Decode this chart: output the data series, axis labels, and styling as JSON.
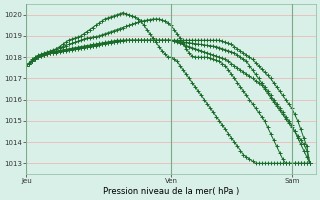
{
  "title": "",
  "xlabel": "Pression niveau de la mer( hPa )",
  "ylabel": "",
  "bg_color": "#d8f0e8",
  "grid_color": "#c8e8d8",
  "line_color": "#1a6b2a",
  "ylim": [
    1012.5,
    1020.5
  ],
  "yticks": [
    1013,
    1014,
    1015,
    1016,
    1017,
    1018,
    1019,
    1020
  ],
  "n_points": 97,
  "day_labels": [
    "Jeu",
    "Ven",
    "Sam"
  ],
  "day_positions": [
    0,
    48,
    88
  ],
  "series": [
    [
      1017.6,
      1017.7,
      1017.8,
      1017.9,
      1018.0,
      1018.1,
      1018.15,
      1018.2,
      1018.25,
      1018.3,
      1018.4,
      1018.5,
      1018.6,
      1018.7,
      1018.8,
      1018.85,
      1018.9,
      1018.95,
      1019.0,
      1019.1,
      1019.2,
      1019.3,
      1019.4,
      1019.5,
      1019.6,
      1019.7,
      1019.8,
      1019.85,
      1019.9,
      1019.95,
      1020.0,
      1020.05,
      1020.1,
      1020.05,
      1020.0,
      1019.95,
      1019.9,
      1019.8,
      1019.7,
      1019.5,
      1019.3,
      1019.1,
      1018.9,
      1018.7,
      1018.5,
      1018.3,
      1018.15,
      1018.0,
      1018.0,
      1017.9,
      1017.8,
      1017.6,
      1017.4,
      1017.2,
      1017.0,
      1016.8,
      1016.6,
      1016.4,
      1016.2,
      1016.0,
      1015.8,
      1015.6,
      1015.4,
      1015.2,
      1015.0,
      1014.8,
      1014.6,
      1014.4,
      1014.2,
      1014.0,
      1013.8,
      1013.6,
      1013.4,
      1013.3,
      1013.2,
      1013.1,
      1013.0,
      1013.0,
      1013.0,
      1013.0,
      1013.0,
      1013.0,
      1013.0,
      1013.0,
      1013.0,
      1013.0,
      1013.0,
      1013.0,
      1013.0,
      1013.0,
      1013.0,
      1013.0,
      1013.0,
      1013.0,
      1013.0
    ],
    [
      1017.6,
      1017.75,
      1017.9,
      1018.0,
      1018.1,
      1018.15,
      1018.2,
      1018.25,
      1018.3,
      1018.35,
      1018.4,
      1018.45,
      1018.5,
      1018.55,
      1018.6,
      1018.65,
      1018.7,
      1018.75,
      1018.8,
      1018.85,
      1018.9,
      1018.92,
      1018.95,
      1018.97,
      1019.0,
      1019.05,
      1019.1,
      1019.15,
      1019.2,
      1019.25,
      1019.3,
      1019.35,
      1019.4,
      1019.45,
      1019.5,
      1019.55,
      1019.6,
      1019.65,
      1019.7,
      1019.72,
      1019.75,
      1019.77,
      1019.8,
      1019.8,
      1019.8,
      1019.75,
      1019.7,
      1019.6,
      1019.5,
      1019.3,
      1019.1,
      1018.9,
      1018.65,
      1018.4,
      1018.2,
      1018.05,
      1018.0,
      1018.0,
      1018.0,
      1018.0,
      1018.0,
      1017.95,
      1017.9,
      1017.85,
      1017.8,
      1017.7,
      1017.6,
      1017.4,
      1017.2,
      1017.0,
      1016.8,
      1016.6,
      1016.4,
      1016.2,
      1016.0,
      1015.8,
      1015.6,
      1015.4,
      1015.2,
      1015.0,
      1014.7,
      1014.4,
      1014.1,
      1013.8,
      1013.5,
      1013.2,
      1013.0,
      1013.0,
      1013.0,
      1013.0,
      1013.0,
      1013.0,
      1013.0,
      1013.0,
      1013.0
    ],
    [
      1017.6,
      1017.7,
      1017.8,
      1017.9,
      1018.0,
      1018.05,
      1018.1,
      1018.15,
      1018.2,
      1018.25,
      1018.3,
      1018.32,
      1018.35,
      1018.37,
      1018.4,
      1018.42,
      1018.45,
      1018.47,
      1018.5,
      1018.52,
      1018.55,
      1018.57,
      1018.6,
      1018.62,
      1018.65,
      1018.67,
      1018.7,
      1018.72,
      1018.75,
      1018.77,
      1018.8,
      1018.8,
      1018.8,
      1018.8,
      1018.8,
      1018.8,
      1018.8,
      1018.8,
      1018.8,
      1018.8,
      1018.8,
      1018.8,
      1018.8,
      1018.8,
      1018.8,
      1018.8,
      1018.8,
      1018.8,
      1018.8,
      1018.75,
      1018.7,
      1018.65,
      1018.6,
      1018.55,
      1018.5,
      1018.45,
      1018.4,
      1018.35,
      1018.3,
      1018.25,
      1018.2,
      1018.15,
      1018.1,
      1018.05,
      1018.0,
      1017.95,
      1017.9,
      1017.8,
      1017.7,
      1017.6,
      1017.5,
      1017.4,
      1017.3,
      1017.2,
      1017.1,
      1017.0,
      1016.9,
      1016.8,
      1016.7,
      1016.5,
      1016.3,
      1016.1,
      1015.9,
      1015.7,
      1015.5,
      1015.3,
      1015.1,
      1014.9,
      1014.7,
      1014.5,
      1014.3,
      1014.1,
      1013.9,
      1013.6,
      1013.0
    ],
    [
      1017.6,
      1017.72,
      1017.84,
      1017.96,
      1018.08,
      1018.1,
      1018.12,
      1018.15,
      1018.18,
      1018.2,
      1018.22,
      1018.25,
      1018.27,
      1018.3,
      1018.32,
      1018.35,
      1018.37,
      1018.4,
      1018.42,
      1018.45,
      1018.47,
      1018.5,
      1018.52,
      1018.55,
      1018.57,
      1018.6,
      1018.62,
      1018.65,
      1018.67,
      1018.7,
      1018.72,
      1018.75,
      1018.77,
      1018.8,
      1018.8,
      1018.8,
      1018.8,
      1018.8,
      1018.8,
      1018.8,
      1018.8,
      1018.8,
      1018.8,
      1018.8,
      1018.8,
      1018.8,
      1018.8,
      1018.8,
      1018.8,
      1018.78,
      1018.76,
      1018.74,
      1018.72,
      1018.7,
      1018.68,
      1018.66,
      1018.64,
      1018.62,
      1018.6,
      1018.58,
      1018.56,
      1018.54,
      1018.52,
      1018.5,
      1018.45,
      1018.4,
      1018.35,
      1018.3,
      1018.25,
      1018.2,
      1018.1,
      1018.0,
      1017.9,
      1017.8,
      1017.6,
      1017.4,
      1017.2,
      1017.0,
      1016.8,
      1016.6,
      1016.4,
      1016.2,
      1016.0,
      1015.8,
      1015.6,
      1015.4,
      1015.2,
      1015.0,
      1014.8,
      1014.5,
      1014.2,
      1013.9,
      1013.6,
      1013.3,
      1013.0
    ],
    [
      1017.6,
      1017.7,
      1017.8,
      1017.9,
      1018.0,
      1018.05,
      1018.1,
      1018.15,
      1018.2,
      1018.22,
      1018.25,
      1018.27,
      1018.3,
      1018.32,
      1018.35,
      1018.37,
      1018.4,
      1018.42,
      1018.45,
      1018.47,
      1018.5,
      1018.52,
      1018.55,
      1018.57,
      1018.6,
      1018.62,
      1018.65,
      1018.67,
      1018.7,
      1018.72,
      1018.75,
      1018.77,
      1018.8,
      1018.8,
      1018.8,
      1018.8,
      1018.8,
      1018.8,
      1018.8,
      1018.8,
      1018.8,
      1018.8,
      1018.8,
      1018.8,
      1018.8,
      1018.8,
      1018.8,
      1018.8,
      1018.8,
      1018.8,
      1018.8,
      1018.8,
      1018.8,
      1018.8,
      1018.8,
      1018.8,
      1018.8,
      1018.8,
      1018.8,
      1018.8,
      1018.8,
      1018.8,
      1018.8,
      1018.8,
      1018.8,
      1018.75,
      1018.7,
      1018.65,
      1018.6,
      1018.5,
      1018.4,
      1018.3,
      1018.2,
      1018.1,
      1018.0,
      1017.9,
      1017.75,
      1017.6,
      1017.45,
      1017.3,
      1017.15,
      1017.0,
      1016.8,
      1016.6,
      1016.4,
      1016.2,
      1016.0,
      1015.8,
      1015.6,
      1015.3,
      1015.0,
      1014.6,
      1014.2,
      1013.8,
      1013.0
    ]
  ]
}
